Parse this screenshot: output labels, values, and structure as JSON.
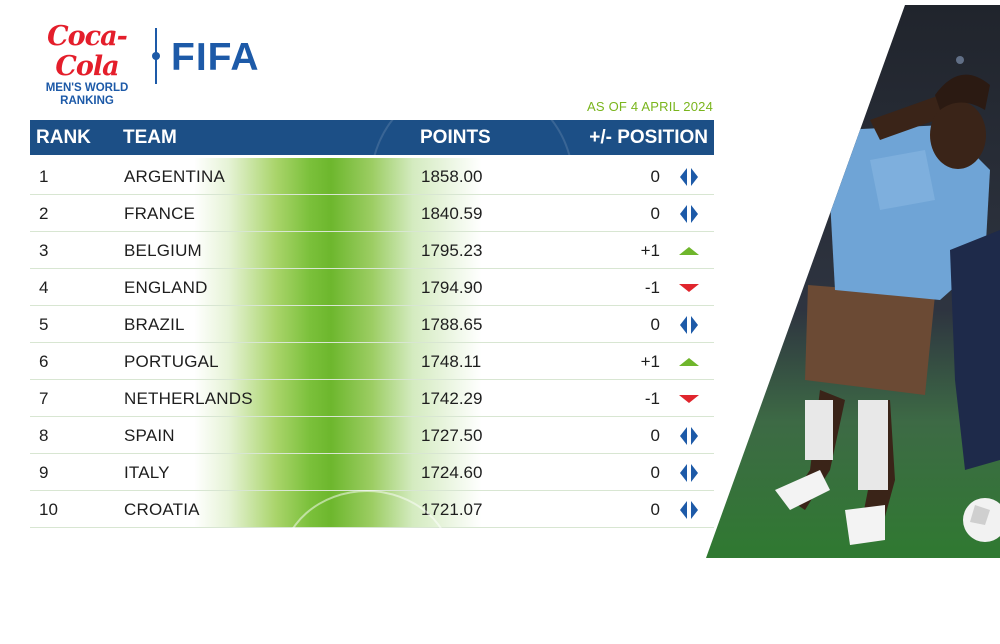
{
  "brand": {
    "coke_script": "Coca-Cola",
    "coke_line1": "MEN'S WORLD",
    "coke_line2": "RANKING",
    "fifa": "FIFA"
  },
  "as_of": "AS OF 4 APRIL 2024",
  "headers": {
    "rank": "RANK",
    "team": "TEAM",
    "points": "POINTS",
    "position": "+/- POSITION"
  },
  "colors": {
    "header_bg": "#1c4f86",
    "accent_green": "#7ab51d",
    "up": "#6fb62c",
    "down": "#e0252d",
    "same": "#1d5aa8"
  },
  "rows": [
    {
      "rank": "1",
      "team": "ARGENTINA",
      "points": "1858.00",
      "change": "0",
      "trend": "same"
    },
    {
      "rank": "2",
      "team": "FRANCE",
      "points": "1840.59",
      "change": "0",
      "trend": "same"
    },
    {
      "rank": "3",
      "team": "BELGIUM",
      "points": "1795.23",
      "change": "+1",
      "trend": "up"
    },
    {
      "rank": "4",
      "team": "ENGLAND",
      "points": "1794.90",
      "change": "-1",
      "trend": "down"
    },
    {
      "rank": "5",
      "team": "BRAZIL",
      "points": "1788.65",
      "change": "0",
      "trend": "same"
    },
    {
      "rank": "6",
      "team": "PORTUGAL",
      "points": "1748.11",
      "change": "+1",
      "trend": "up"
    },
    {
      "rank": "7",
      "team": "NETHERLANDS",
      "points": "1742.29",
      "change": "-1",
      "trend": "down"
    },
    {
      "rank": "8",
      "team": "SPAIN",
      "points": "1727.50",
      "change": "0",
      "trend": "same"
    },
    {
      "rank": "9",
      "team": "ITALY",
      "points": "1724.60",
      "change": "0",
      "trend": "same"
    },
    {
      "rank": "10",
      "team": "CROATIA",
      "points": "1721.07",
      "change": "0",
      "trend": "same"
    }
  ]
}
